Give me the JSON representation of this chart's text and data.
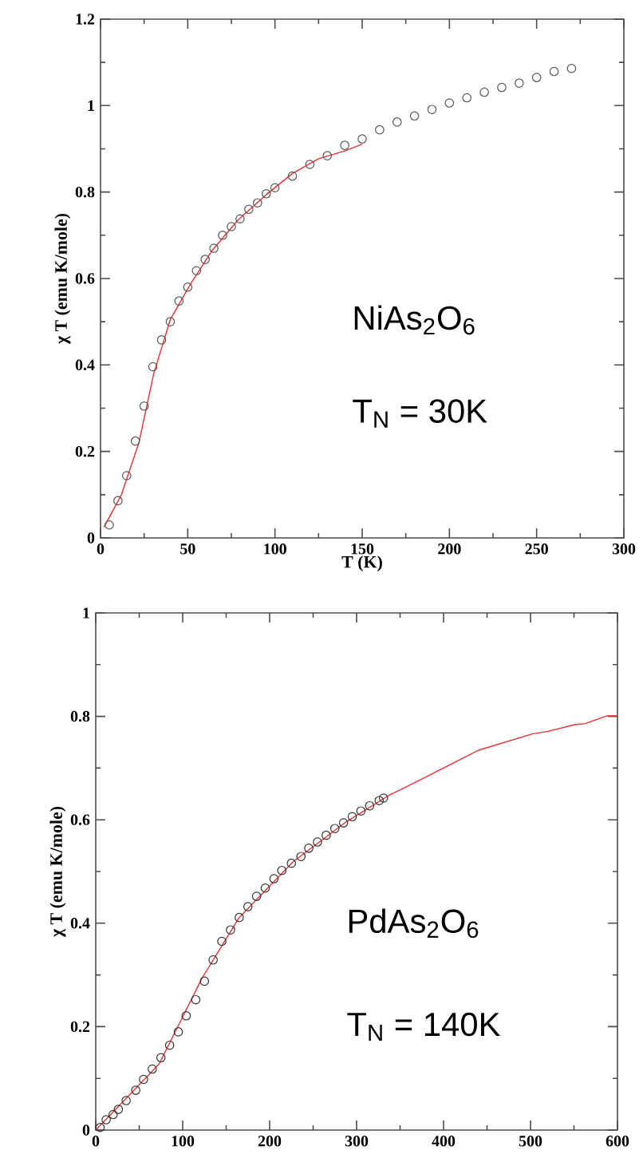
{
  "chart_data": [
    {
      "type": "scatter",
      "xlabel": "T (K)",
      "ylabel": "χ T (emu K/mole)",
      "xlim": [
        0,
        300
      ],
      "ylim": [
        0,
        1.2
      ],
      "xticks": [
        0,
        50,
        100,
        150,
        200,
        250,
        300
      ],
      "yticks": [
        0,
        0.2,
        0.4,
        0.6,
        0.8,
        1,
        1.2
      ],
      "annotations": [
        "NiAs$_{2}$O$_{6}$",
        "T$_{N}$ = 30K"
      ],
      "series": [
        {
          "marker": "circle",
          "color": "#555555",
          "x": [
            5,
            10,
            15,
            20,
            25,
            30,
            35,
            40,
            45,
            50,
            55,
            60,
            65,
            70,
            75,
            80,
            85,
            90,
            95,
            100,
            110,
            120,
            130,
            140,
            150,
            160,
            170,
            180,
            190,
            200,
            210,
            220,
            230,
            240,
            250,
            260,
            270
          ],
          "values": [
            0.03,
            0.086,
            0.144,
            0.224,
            0.305,
            0.396,
            0.458,
            0.5,
            0.548,
            0.58,
            0.618,
            0.644,
            0.67,
            0.7,
            0.72,
            0.738,
            0.76,
            0.775,
            0.796,
            0.81,
            0.837,
            0.864,
            0.884,
            0.908,
            0.923,
            0.944,
            0.962,
            0.976,
            0.991,
            1.006,
            1.018,
            1.031,
            1.042,
            1.052,
            1.065,
            1.079,
            1.086
          ]
        },
        {
          "type": "line",
          "marker": "none",
          "color": "#e83030",
          "x": [
            2,
            12,
            22,
            30.5,
            40,
            52,
            64,
            79,
            95,
            110,
            125,
            140,
            150
          ],
          "values": [
            0.025,
            0.1,
            0.22,
            0.38,
            0.505,
            0.59,
            0.665,
            0.736,
            0.794,
            0.843,
            0.877,
            0.895,
            0.911
          ]
        }
      ]
    },
    {
      "type": "scatter",
      "ylabel": "χ T (emu K/mole)",
      "xlim": [
        0,
        600
      ],
      "ylim": [
        0,
        1
      ],
      "xticks": [
        0,
        100,
        200,
        300,
        400,
        500,
        600
      ],
      "yticks": [
        0,
        0.2,
        0.4,
        0.6,
        0.8,
        1
      ],
      "annotations": [
        "PdAs$_{2}$O$_{6}$",
        "T$_{N}$ = 140K"
      ],
      "series": [
        {
          "marker": "circle",
          "color": "#333333",
          "x": [
            5,
            12,
            20,
            26,
            35,
            46,
            55,
            65,
            75,
            85,
            95,
            104,
            115,
            125,
            135,
            145,
            155,
            165,
            175,
            185,
            195,
            205,
            214,
            225,
            236,
            245,
            255,
            265,
            275,
            285,
            295,
            305,
            315,
            326,
            331
          ],
          "values": [
            0.005,
            0.02,
            0.03,
            0.04,
            0.057,
            0.077,
            0.098,
            0.118,
            0.14,
            0.164,
            0.19,
            0.221,
            0.252,
            0.288,
            0.329,
            0.365,
            0.387,
            0.411,
            0.432,
            0.452,
            0.468,
            0.486,
            0.502,
            0.516,
            0.529,
            0.545,
            0.557,
            0.57,
            0.583,
            0.594,
            0.606,
            0.617,
            0.627,
            0.637,
            0.642
          ]
        },
        {
          "type": "line",
          "marker": "none",
          "color": "#e83030",
          "x": [
            0,
            73,
            122,
            165,
            227,
            288,
            337,
            380,
            441,
            502,
            520,
            551,
            563,
            588,
            600
          ],
          "values": [
            0,
            0.128,
            0.293,
            0.411,
            0.519,
            0.596,
            0.647,
            0.683,
            0.735,
            0.766,
            0.771,
            0.784,
            0.786,
            0.801,
            0.801
          ]
        }
      ]
    }
  ]
}
